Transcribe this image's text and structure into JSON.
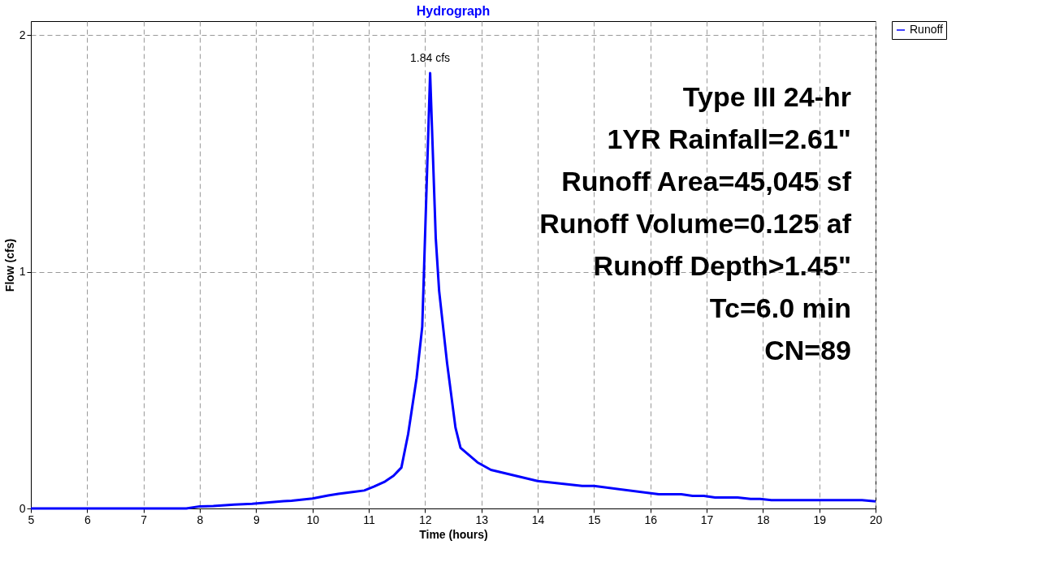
{
  "chart_data": {
    "type": "line",
    "title": "Hydrograph",
    "xlabel": "Time  (hours)",
    "ylabel": "Flow  (cfs)",
    "xlim": [
      5,
      20
    ],
    "xticks": [
      5,
      6,
      7,
      8,
      9,
      10,
      11,
      12,
      13,
      14,
      15,
      16,
      17,
      18,
      19,
      20
    ],
    "ylim": [
      0,
      2.06
    ],
    "yticks": [
      0,
      1,
      2
    ],
    "grid": true,
    "legend": "top right",
    "line_style": "solid",
    "marker": "none",
    "series": [
      {
        "name": "Runoff",
        "color": "#0000ff",
        "x": [
          5,
          7.76,
          8.0,
          8.24,
          8.61,
          8.93,
          9.49,
          9.63,
          10.0,
          10.28,
          10.46,
          10.74,
          10.92,
          11.09,
          11.29,
          11.44,
          11.58,
          11.7,
          11.85,
          11.95,
          12.09,
          12.19,
          12.25,
          12.39,
          12.54,
          12.63,
          12.93,
          13.17,
          14.0,
          14.79,
          15.0,
          16.15,
          16.55,
          16.75,
          16.95,
          17.15,
          17.55,
          17.78,
          17.95,
          18.15,
          19.76,
          20
        ],
        "values": [
          0,
          0,
          0.009,
          0.01,
          0.016,
          0.02,
          0.031,
          0.033,
          0.042,
          0.055,
          0.062,
          0.07,
          0.076,
          0.092,
          0.114,
          0.138,
          0.173,
          0.315,
          0.552,
          0.768,
          1.84,
          1.143,
          0.92,
          0.617,
          0.342,
          0.256,
          0.195,
          0.163,
          0.116,
          0.095,
          0.095,
          0.06,
          0.06,
          0.053,
          0.053,
          0.046,
          0.046,
          0.04,
          0.04,
          0.035,
          0.035,
          0.03
        ]
      }
    ],
    "annotations": [
      {
        "text": "1.84 cfs",
        "x": 12.09,
        "y": 1.84
      },
      "Type III 24-hr",
      "1YR Rainfall=2.61\"",
      "Runoff Area=45,045 sf",
      "Runoff Volume=0.125 af",
      "Runoff Depth>1.45\"",
      "Tc=6.0 min",
      "CN=89"
    ]
  }
}
